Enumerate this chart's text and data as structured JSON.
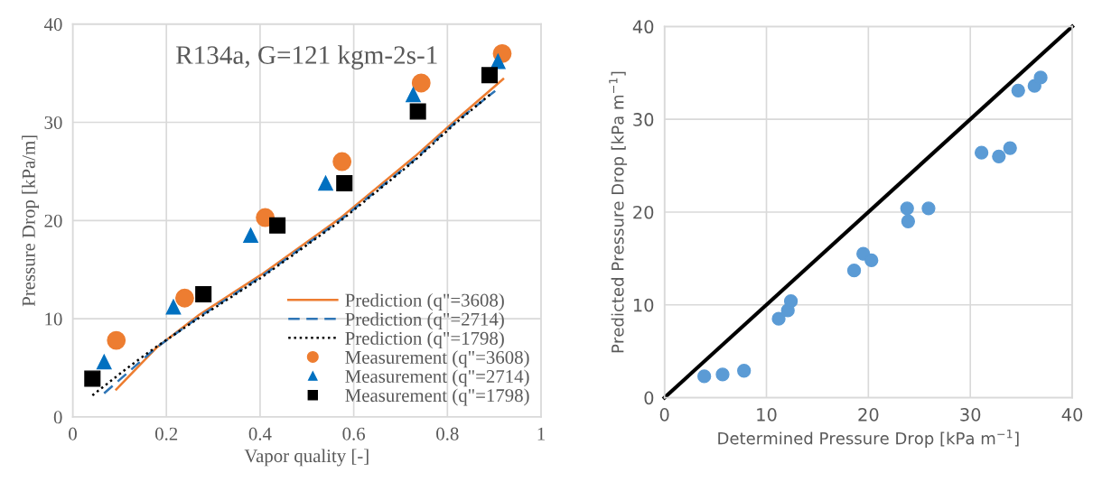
{
  "chart_data": [
    {
      "type": "line",
      "title": "R134a, G=121 kgm-2s-1",
      "xlabel": "Vapor quality [-]",
      "ylabel": "Pressure Drop [kPa/m]",
      "xlim": [
        0,
        1
      ],
      "ylim": [
        0,
        40
      ],
      "xticks": [
        0,
        0.2,
        0.4,
        0.6,
        0.8,
        1
      ],
      "yticks": [
        0,
        10,
        20,
        30,
        40
      ],
      "grid": true,
      "legend": "bottom right",
      "series": [
        {
          "name": "Prediction (q\"=3608)",
          "color": "#ed7d31",
          "line_style": "solid",
          "marker": "none",
          "x": [
            0.093,
            0.18,
            0.27,
            0.403,
            0.57,
            0.73,
            0.817,
            0.919
          ],
          "values": [
            2.8,
            7.1,
            10.4,
            14.5,
            20.2,
            26.5,
            30.2,
            34.4
          ]
        },
        {
          "name": "Prediction (q\"=2714)",
          "color": "#2e75b6",
          "line_style": "dashed",
          "marker": "none",
          "x": [
            0.067,
            0.177,
            0.27,
            0.403,
            0.57,
            0.73,
            0.817,
            0.902
          ],
          "values": [
            2.4,
            7.0,
            10.2,
            14.3,
            20.0,
            26.2,
            30.0,
            33.2
          ]
        },
        {
          "name": "Prediction (q\"=1798)",
          "color": "#000000",
          "line_style": "dotted",
          "marker": "none",
          "x": [
            0.042,
            0.117,
            0.177,
            0.27,
            0.403,
            0.57,
            0.73,
            0.817,
            0.893
          ],
          "values": [
            2.2,
            5.0,
            7.1,
            10.1,
            14.2,
            19.9,
            26.1,
            29.9,
            32.9
          ]
        },
        {
          "name": "Measurement (q\"=3608)",
          "type": "scatter",
          "color": "#ed7d31",
          "marker": "circle",
          "x": [
            0.093,
            0.239,
            0.411,
            0.575,
            0.744,
            0.917
          ],
          "values": [
            7.8,
            12.1,
            20.3,
            26.0,
            34.0,
            37.0
          ]
        },
        {
          "name": "Measurement (q\"=2714)",
          "type": "scatter",
          "color": "#0070c0",
          "marker": "triangle",
          "x": [
            0.067,
            0.215,
            0.38,
            0.54,
            0.727,
            0.908
          ],
          "values": [
            5.6,
            11.2,
            18.5,
            23.8,
            32.8,
            36.2
          ]
        },
        {
          "name": "Measurement (q\"=1798)",
          "type": "scatter",
          "color": "#000000",
          "marker": "square",
          "x": [
            0.042,
            0.279,
            0.437,
            0.58,
            0.737,
            0.89
          ],
          "values": [
            3.9,
            12.5,
            19.5,
            23.8,
            31.1,
            34.8
          ]
        }
      ]
    },
    {
      "type": "scatter",
      "xlabel": "Determined Pressure Drop [kPa m$^{−1}$]",
      "ylabel": "Predicted Pressure Drop [kPa m$^{−1}$]",
      "xlim": [
        0,
        40
      ],
      "ylim": [
        0,
        40
      ],
      "xticks": [
        0,
        10,
        20,
        30,
        40
      ],
      "yticks": [
        0,
        10,
        20,
        30,
        40
      ],
      "grid": true,
      "series": [
        {
          "type": "scatter",
          "color": "#5b9bd5",
          "marker": "circle",
          "x": [
            3.9,
            5.7,
            7.8,
            11.2,
            12.1,
            12.4,
            18.6,
            19.5,
            20.3,
            23.8,
            23.9,
            25.9,
            31.1,
            32.8,
            33.9,
            34.7,
            36.3,
            36.9
          ],
          "values": [
            2.3,
            2.5,
            2.9,
            8.5,
            9.4,
            10.4,
            13.7,
            15.5,
            14.8,
            20.4,
            19.0,
            20.4,
            26.4,
            26.0,
            26.9,
            33.1,
            33.6,
            34.5
          ]
        },
        {
          "type": "line",
          "color": "#000000",
          "line_style": "solid",
          "marker": "none",
          "x": [
            0,
            40
          ],
          "values": [
            0,
            40
          ]
        }
      ]
    }
  ]
}
